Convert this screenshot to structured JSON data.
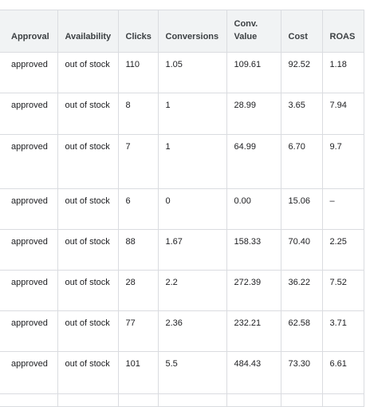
{
  "table": {
    "headers": {
      "approval": "Approval",
      "availability": "Availability",
      "clicks": "Clicks",
      "conversions": "Conversions",
      "conv_value_line1": "Conv.",
      "conv_value_line2": "Value",
      "cost": "Cost",
      "roas": "ROAS"
    },
    "rows": [
      {
        "approval": "approved",
        "availability": "out of stock",
        "clicks": "110",
        "conversions": "1.05",
        "conv_value": "109.61",
        "cost": "92.52",
        "roas": "1.18"
      },
      {
        "approval": "approved",
        "availability": "out of stock",
        "clicks": "8",
        "conversions": "1",
        "conv_value": "28.99",
        "cost": "3.65",
        "roas": "7.94"
      },
      {
        "approval": "approved",
        "availability": "out of stock",
        "clicks": "7",
        "conversions": "1",
        "conv_value": "64.99",
        "cost": "6.70",
        "roas": "9.7"
      },
      {
        "approval": "approved",
        "availability": "out of stock",
        "clicks": "6",
        "conversions": "0",
        "conv_value": "0.00",
        "cost": "15.06",
        "roas": "–"
      },
      {
        "approval": "approved",
        "availability": "out of stock",
        "clicks": "88",
        "conversions": "1.67",
        "conv_value": "158.33",
        "cost": "70.40",
        "roas": "2.25"
      },
      {
        "approval": "approved",
        "availability": "out of stock",
        "clicks": "28",
        "conversions": "2.2",
        "conv_value": "272.39",
        "cost": "36.22",
        "roas": "7.52"
      },
      {
        "approval": "approved",
        "availability": "out of stock",
        "clicks": "77",
        "conversions": "2.36",
        "conv_value": "232.21",
        "cost": "62.58",
        "roas": "3.71"
      },
      {
        "approval": "approved",
        "availability": "out of stock",
        "clicks": "101",
        "conversions": "5.5",
        "conv_value": "484.43",
        "cost": "73.30",
        "roas": "6.61"
      }
    ]
  }
}
